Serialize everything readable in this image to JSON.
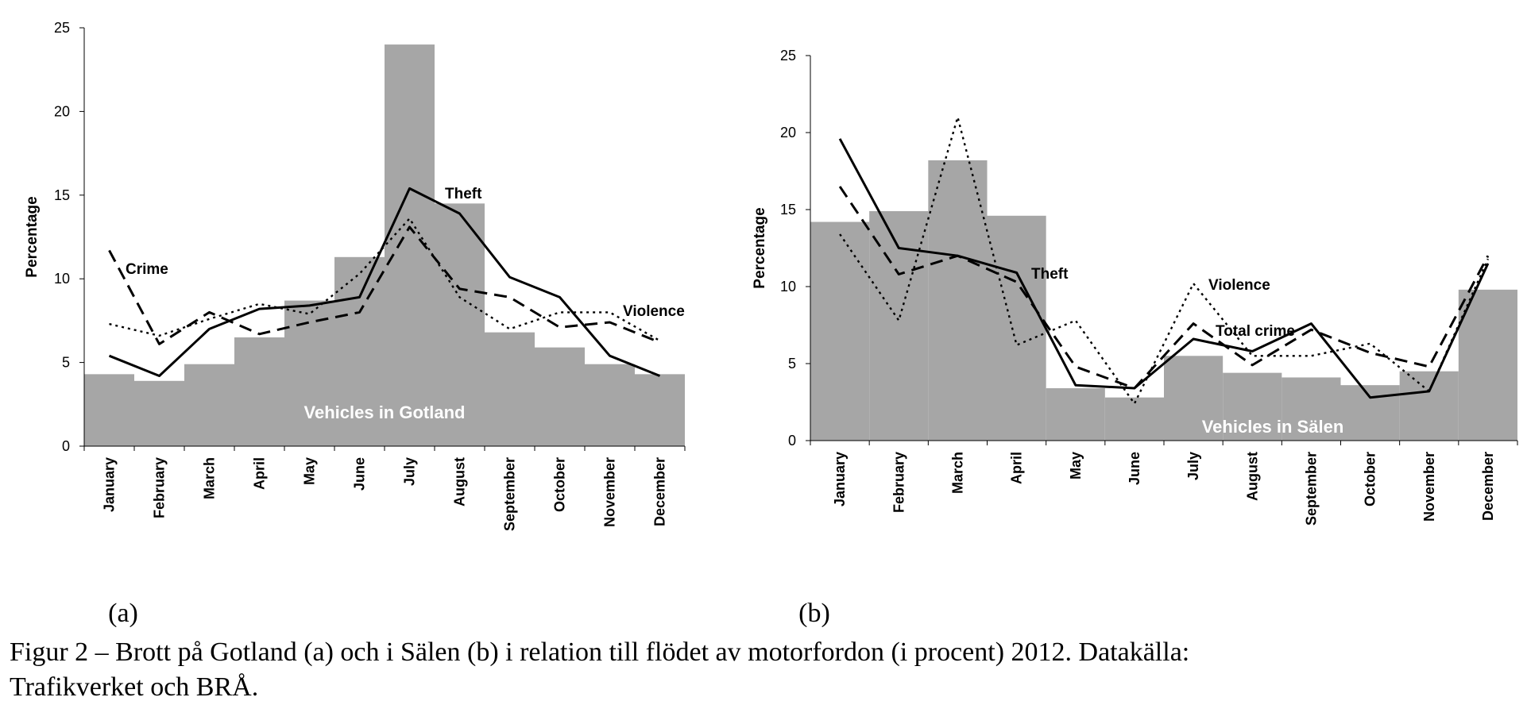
{
  "colors": {
    "bars": "#a6a6a6",
    "lines": "#000000",
    "bar_label": "#ffffff"
  },
  "months": [
    "January",
    "February",
    "March",
    "April",
    "May",
    "June",
    "July",
    "August",
    "September",
    "October",
    "November",
    "December"
  ],
  "chart_data": [
    {
      "type": "bar",
      "panel_label": "(a)",
      "ylabel": "Percentage",
      "ylim": [
        0,
        25
      ],
      "yticks": [
        0,
        5,
        10,
        15,
        20,
        25
      ],
      "bar_label": "Vehicles in Gotland",
      "bars": [
        4.3,
        3.9,
        4.9,
        6.5,
        8.7,
        11.3,
        24.0,
        14.5,
        6.8,
        5.9,
        4.9,
        4.3
      ],
      "series": [
        {
          "name": "Crime",
          "style": "dashed",
          "label": "Crime",
          "values": [
            11.7,
            6.1,
            8.0,
            6.7,
            7.4,
            8.0,
            13.1,
            9.4,
            8.9,
            7.1,
            7.4,
            6.2
          ]
        },
        {
          "name": "Theft",
          "style": "solid",
          "label": "Theft",
          "values": [
            5.4,
            4.2,
            7.0,
            8.2,
            8.4,
            8.9,
            15.4,
            13.9,
            10.1,
            8.9,
            5.4,
            4.2
          ]
        },
        {
          "name": "Violence",
          "style": "dotted",
          "label": "Violence",
          "values": [
            7.3,
            6.6,
            7.6,
            8.5,
            7.9,
            10.3,
            13.6,
            8.9,
            7.0,
            8.0,
            8.0,
            6.3
          ]
        }
      ]
    },
    {
      "type": "bar",
      "panel_label": "(b)",
      "ylabel": "Percentage",
      "ylim": [
        0,
        25
      ],
      "yticks": [
        0,
        5,
        10,
        15,
        20,
        25
      ],
      "bar_label": "Vehicles in Sälen",
      "bars": [
        14.2,
        14.9,
        18.2,
        14.6,
        3.4,
        2.8,
        5.5,
        4.4,
        4.1,
        3.6,
        4.5,
        9.8
      ],
      "series": [
        {
          "name": "Theft",
          "style": "solid",
          "label": "Theft",
          "values": [
            19.6,
            12.5,
            12.0,
            10.9,
            3.6,
            3.4,
            6.6,
            5.8,
            7.6,
            2.8,
            3.2,
            11.5
          ]
        },
        {
          "name": "Total crime",
          "style": "dashed",
          "label": "Total crime",
          "values": [
            16.5,
            10.8,
            12.0,
            10.3,
            4.8,
            3.4,
            7.6,
            4.9,
            7.2,
            5.7,
            4.8,
            12.0
          ]
        },
        {
          "name": "Violence",
          "style": "dotted",
          "label": "Violence",
          "values": [
            13.4,
            7.8,
            21.0,
            6.2,
            7.8,
            2.4,
            10.2,
            5.5,
            5.5,
            6.3,
            3.2,
            11.8
          ]
        }
      ]
    }
  ],
  "caption": {
    "line1": "Figur 2 – Brott på Gotland (a) och i Sälen (b) i relation till flödet av motorfordon (i procent) 2012. Datakälla:",
    "line2": "Trafikverket och BRÅ."
  }
}
